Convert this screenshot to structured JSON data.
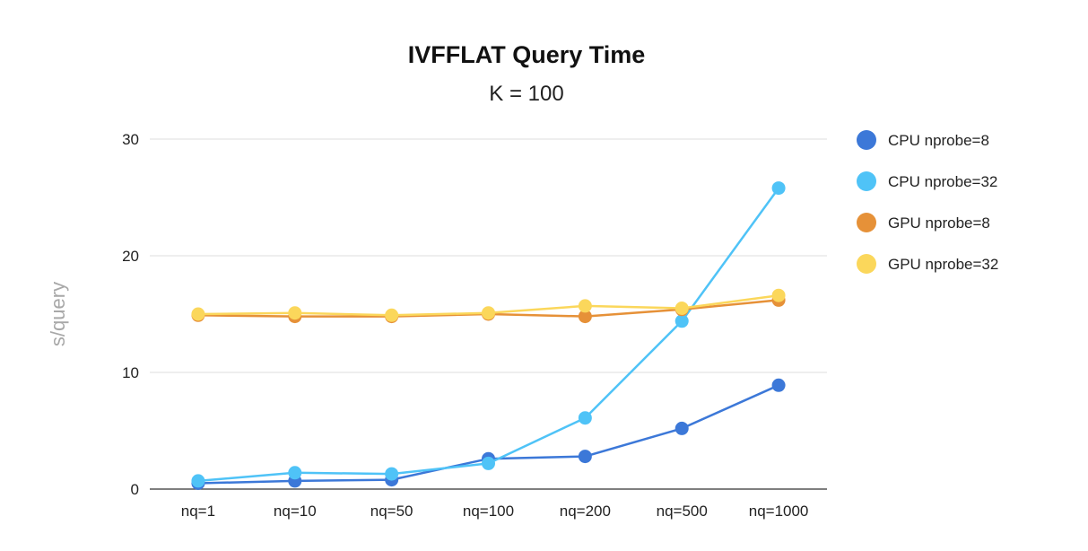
{
  "chart_data": {
    "type": "line",
    "title": "IVFFLAT Query Time",
    "subtitle": "K = 100",
    "xlabel": "",
    "ylabel": "s/query",
    "categories": [
      "nq=1",
      "nq=10",
      "nq=50",
      "nq=100",
      "nq=200",
      "nq=500",
      "nq=1000"
    ],
    "ylim": [
      0,
      30
    ],
    "yticks": [
      0,
      10,
      20,
      30
    ],
    "grid": true,
    "legend_position": "right",
    "markers": "circle",
    "series": [
      {
        "name": "CPU nprobe=8",
        "color": "#3c78d8",
        "values": [
          0.5,
          0.7,
          0.8,
          2.6,
          2.8,
          5.2,
          8.9
        ]
      },
      {
        "name": "CPU nprobe=32",
        "color": "#4fc3f7",
        "values": [
          0.7,
          1.4,
          1.3,
          2.2,
          6.1,
          14.4,
          25.8
        ]
      },
      {
        "name": "GPU nprobe=8",
        "color": "#e69138",
        "values": [
          14.9,
          14.8,
          14.8,
          15.0,
          14.8,
          15.4,
          16.2
        ]
      },
      {
        "name": "GPU nprobe=32",
        "color": "#fbd75b",
        "values": [
          15.0,
          15.1,
          14.9,
          15.1,
          15.7,
          15.5,
          16.6
        ]
      }
    ]
  }
}
